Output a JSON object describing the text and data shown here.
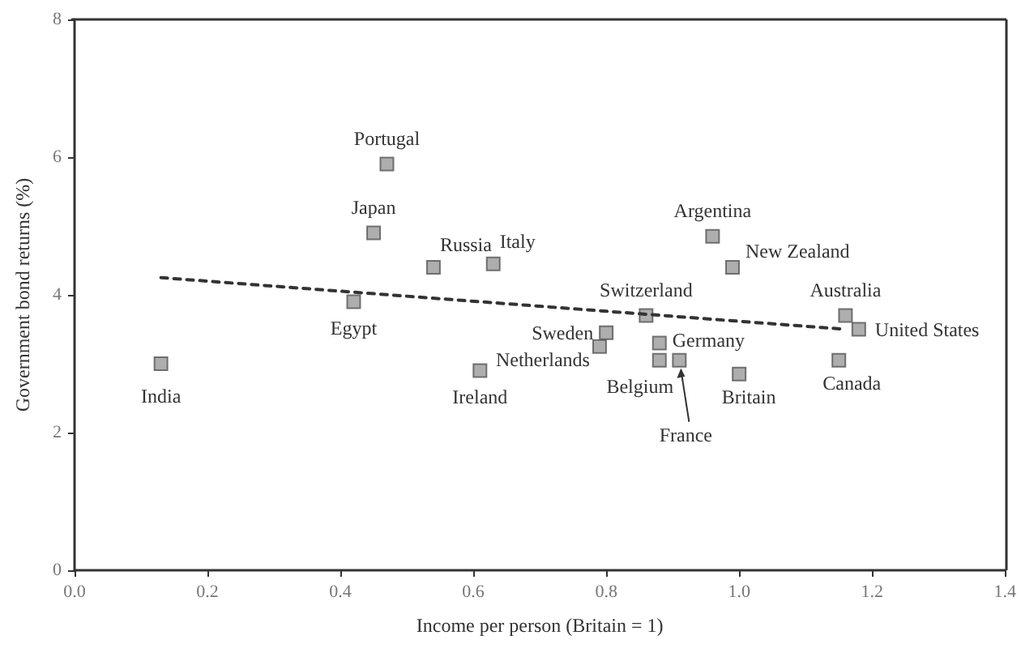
{
  "chart_data": {
    "type": "scatter",
    "xlabel": "Income per person (Britain = 1)",
    "ylabel": "Government bond returns (%)",
    "xlim": [
      0,
      1.4
    ],
    "xticks": [
      {
        "value": 0,
        "label": "0.0"
      },
      0.2,
      0.4,
      0.6,
      0.8,
      {
        "value": 1,
        "label": "1.0"
      },
      1.2,
      1.4
    ],
    "ylim": [
      0,
      8
    ],
    "yticks": [
      0,
      2,
      4,
      6,
      8
    ],
    "grid": false,
    "marker": "square",
    "series": [
      {
        "color": "#9a9a9a",
        "x": [
          0.13,
          0.42,
          0.45,
          0.47,
          0.54,
          0.63,
          0.61,
          0.8,
          0.79,
          0.86,
          0.88,
          0.88,
          0.91,
          0.96,
          0.99,
          1.0,
          1.16,
          1.18,
          1.15
        ],
        "values": [
          3.0,
          3.9,
          4.9,
          5.9,
          4.4,
          4.45,
          2.9,
          3.45,
          3.25,
          3.7,
          3.3,
          3.05,
          3.05,
          4.85,
          4.4,
          2.85,
          3.7,
          3.5,
          3.05
        ]
      },
      {
        "type": "line",
        "color": "#333333",
        "line_style": "dashed",
        "marker": "none",
        "x": [
          0.13,
          1.16
        ],
        "values": [
          4.25,
          3.5
        ]
      }
    ],
    "annotations": [
      {
        "text": "India",
        "x": 0.13,
        "y": 3.0
      },
      {
        "text": "Egypt",
        "x": 0.42,
        "y": 3.9
      },
      {
        "text": "Japan",
        "x": 0.45,
        "y": 4.9
      },
      {
        "text": "Portugal",
        "x": 0.47,
        "y": 5.9
      },
      {
        "text": "Russia",
        "x": 0.54,
        "y": 4.4
      },
      {
        "text": "Italy",
        "x": 0.63,
        "y": 4.45
      },
      {
        "text": "Ireland",
        "x": 0.61,
        "y": 2.9
      },
      {
        "text": "Sweden",
        "x": 0.8,
        "y": 3.45
      },
      {
        "text": "Netherlands",
        "x": 0.79,
        "y": 3.25
      },
      {
        "text": "Switzerland",
        "x": 0.86,
        "y": 3.7
      },
      {
        "text": "Germany",
        "x": 0.88,
        "y": 3.3
      },
      {
        "text": "Belgium",
        "x": 0.88,
        "y": 3.05
      },
      {
        "text": "France",
        "x": 0.91,
        "y": 3.05
      },
      {
        "text": "Argentina",
        "x": 0.96,
        "y": 4.85
      },
      {
        "text": "New Zealand",
        "x": 0.99,
        "y": 4.4
      },
      {
        "text": "Britain",
        "x": 1.0,
        "y": 2.85
      },
      {
        "text": "Australia",
        "x": 1.16,
        "y": 3.7
      },
      {
        "text": "United States",
        "x": 1.18,
        "y": 3.5
      },
      {
        "text": "Canada",
        "x": 1.15,
        "y": 3.05
      }
    ]
  }
}
